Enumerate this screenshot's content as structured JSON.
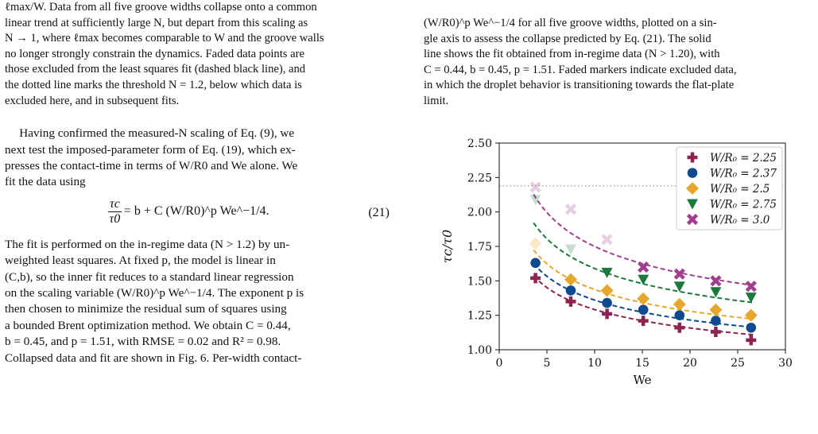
{
  "left": {
    "caption_lines": [
      "ℓmax/W. Data from all five groove widths collapse onto a common",
      "linear trend at sufficiently large N, but depart from this scaling as",
      "N → 1, where ℓmax becomes comparable to W and the groove walls",
      "no longer strongly constrain the dynamics. Faded data points are",
      "those excluded from the least squares fit (dashed black line), and",
      "the dotted line marks the threshold N = 1.2, below which data is",
      "excluded here, and in subsequent fits."
    ],
    "paragraph1_lines": [
      "Having confirmed the measured-N scaling of Eq. (9), we",
      "next test the imposed-parameter form of Eq. (19), which ex-",
      "presses the contact-time in terms of W/R0 and We alone. We",
      "fit the data using"
    ],
    "equation": {
      "numerator": "τc",
      "denominator": "τ0",
      "rhs": "= b + C (W/R0)^p We^−1/4.",
      "number": "(21)"
    },
    "paragraph2_lines": [
      "The fit is performed on the in-regime data (N > 1.2) by un-",
      "weighted least squares.  At fixed p, the model is linear in",
      "(C,b), so the inner fit reduces to a standard linear regression",
      "on the scaling variable (W/R0)^p We^−1/4.  The exponent p is",
      "then chosen to minimize the residual sum of squares using",
      "a bounded Brent optimization method.  We obtain C = 0.44,",
      "b = 0.45, and p = 1.51, with RMSE = 0.02 and R² = 0.98.",
      "Collapsed data and fit are shown in Fig. 6.  Per-width contact-"
    ]
  },
  "right": {
    "caption_lines": [
      "(W/R0)^p We^−1/4  for all five groove widths, plotted on a sin-",
      "gle axis to assess the collapse predicted by Eq. (21).  The solid",
      "line shows the fit obtained from in-regime data (N > 1.20), with",
      "C = 0.44, b = 0.45, p = 1.51. Faded markers indicate excluded data,",
      "in which the droplet behavior is transitioning towards the flat-plate",
      "limit."
    ]
  },
  "chart_data": {
    "type": "scatter",
    "xlabel": "We",
    "ylabel": "τc/τ0",
    "xlim": [
      0,
      30
    ],
    "ylim": [
      1.0,
      2.5
    ],
    "xticks": [
      0,
      5,
      10,
      15,
      20,
      25,
      30
    ],
    "yticks": [
      1.0,
      1.25,
      1.5,
      1.75,
      2.0,
      2.25,
      2.5
    ],
    "xtick_labels": [
      "0",
      "5",
      "10",
      "15",
      "20",
      "25",
      "30"
    ],
    "ytick_labels": [
      "1.00",
      "1.25",
      "1.50",
      "1.75",
      "2.00",
      "2.25",
      "2.50"
    ],
    "threshold_line_y": 2.19,
    "legend_position": "top-right",
    "fit": {
      "b": 0.45,
      "C": 0.44,
      "p": 1.51
    },
    "series": [
      {
        "name": "W/R0 = 2.25",
        "legend": "W/R₀ = 2.25",
        "w": 2.25,
        "marker": "plus",
        "color": "#8e2351",
        "x": [
          3.8,
          7.5,
          11.3,
          15.1,
          18.9,
          22.7,
          26.4
        ],
        "y": [
          1.52,
          1.35,
          1.26,
          1.21,
          1.16,
          1.13,
          1.07
        ],
        "faded": [
          false,
          false,
          false,
          false,
          false,
          false,
          false
        ]
      },
      {
        "name": "W/R0 = 2.37",
        "legend": "W/R₀ = 2.37",
        "w": 2.37,
        "marker": "circle",
        "color": "#0d4a8f",
        "x": [
          3.8,
          7.5,
          11.3,
          15.1,
          18.9,
          22.7,
          26.4
        ],
        "y": [
          1.63,
          1.43,
          1.34,
          1.29,
          1.25,
          1.21,
          1.16
        ],
        "faded": [
          false,
          false,
          false,
          false,
          false,
          false,
          false
        ]
      },
      {
        "name": "W/R0 = 2.5",
        "legend": "W/R₀ = 2.5",
        "w": 2.5,
        "marker": "diamond",
        "color": "#e6a82c",
        "x": [
          3.8,
          7.5,
          11.3,
          15.1,
          18.9,
          22.7,
          26.4
        ],
        "y": [
          1.77,
          1.51,
          1.43,
          1.37,
          1.33,
          1.29,
          1.25
        ],
        "faded": [
          true,
          false,
          false,
          false,
          false,
          false,
          false
        ]
      },
      {
        "name": "W/R0 = 2.75",
        "legend": "W/R₀ = 2.75",
        "w": 2.75,
        "marker": "triangle-down",
        "color": "#1a7a3c",
        "x": [
          3.8,
          7.5,
          11.3,
          15.1,
          18.9,
          22.7,
          26.4
        ],
        "y": [
          2.09,
          1.73,
          1.56,
          1.51,
          1.46,
          1.42,
          1.38
        ],
        "faded": [
          true,
          true,
          false,
          false,
          false,
          false,
          false
        ]
      },
      {
        "name": "W/R0 = 3.0",
        "legend": "W/R₀ = 3.0",
        "w": 3.0,
        "marker": "x",
        "color": "#a13f8e",
        "x": [
          3.8,
          7.5,
          11.3,
          15.1,
          18.9,
          22.7,
          26.4
        ],
        "y": [
          2.18,
          2.02,
          1.8,
          1.6,
          1.55,
          1.5,
          1.46
        ],
        "faded": [
          true,
          true,
          true,
          false,
          false,
          false,
          false
        ]
      }
    ]
  }
}
